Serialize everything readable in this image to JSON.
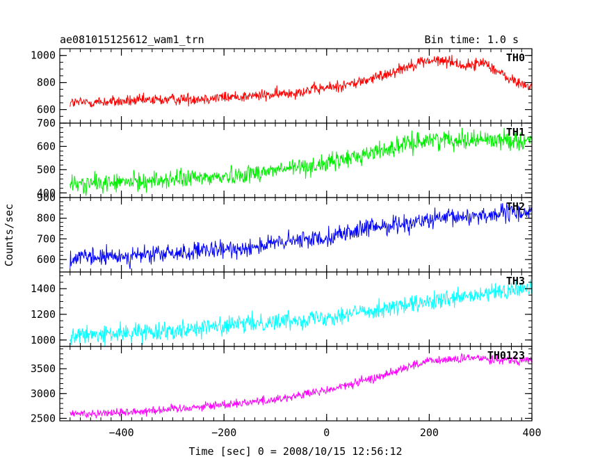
{
  "header": {
    "title": "ae081015125612_wam1_trn",
    "bin_time": "Bin time: 1.0 s"
  },
  "axes": {
    "ylabel": "Counts/sec",
    "xlabel": "Time [sec] 0 = 2008/10/15 12:56:12",
    "xlim": [
      -520,
      400
    ],
    "xticks_major": [
      -400,
      -200,
      0,
      200,
      400
    ],
    "xtick_labels": [
      "−400",
      "−200",
      "0",
      "200",
      "400"
    ],
    "x_minor_step": 20
  },
  "chart_data": {
    "type": "line",
    "x_range": [
      -500,
      400
    ],
    "bin_time_s": 1.0,
    "panels": [
      {
        "name": "TH0",
        "color": "#ff0000",
        "ylim": [
          500,
          1050
        ],
        "yticks": [
          600,
          800,
          1000
        ],
        "ytick_labels": [
          "600",
          "800",
          "1000"
        ],
        "y_minor_step": 50,
        "noise": 22,
        "trend_x": [
          -500,
          -400,
          -300,
          -200,
          -100,
          0,
          50,
          100,
          150,
          180,
          200,
          240,
          270,
          310,
          340,
          370,
          400
        ],
        "trend_y": [
          650,
          660,
          675,
          690,
          710,
          760,
          790,
          840,
          910,
          950,
          960,
          960,
          920,
          950,
          860,
          800,
          770
        ]
      },
      {
        "name": "TH1",
        "color": "#00ee00",
        "ylim": [
          380,
          700
        ],
        "yticks": [
          400,
          500,
          600,
          700
        ],
        "ytick_labels": [
          "400",
          "500",
          "600",
          "700"
        ],
        "y_minor_step": 20,
        "noise": 20,
        "trend_x": [
          -500,
          -400,
          -200,
          0,
          100,
          200,
          300,
          400
        ],
        "trend_y": [
          435,
          445,
          470,
          525,
          580,
          630,
          630,
          625
        ]
      },
      {
        "name": "TH2",
        "color": "#0000ff",
        "ylim": [
          540,
          900
        ],
        "yticks": [
          600,
          700,
          800,
          900
        ],
        "ytick_labels": [
          "600",
          "700",
          "800",
          "900"
        ],
        "y_minor_step": 20,
        "noise": 22,
        "trend_x": [
          -500,
          -400,
          -200,
          0,
          100,
          200,
          300,
          400
        ],
        "trend_y": [
          605,
          615,
          645,
          710,
          760,
          790,
          815,
          830
        ]
      },
      {
        "name": "TH3",
        "color": "#00ffff",
        "ylim": [
          950,
          1530
        ],
        "yticks": [
          1000,
          1200,
          1400
        ],
        "ytick_labels": [
          "1000",
          "1200",
          "1400"
        ],
        "y_minor_step": 50,
        "noise": 35,
        "trend_x": [
          -500,
          -400,
          -200,
          0,
          100,
          200,
          300,
          400
        ],
        "trend_y": [
          1030,
          1050,
          1110,
          1180,
          1240,
          1290,
          1350,
          1410
        ]
      },
      {
        "name": "TH0123",
        "color": "#ff00ff",
        "ylim": [
          2450,
          3950
        ],
        "yticks": [
          2500,
          3000,
          3500
        ],
        "ytick_labels": [
          "2500",
          "3000",
          "3500"
        ],
        "y_minor_step": 100,
        "noise": 45,
        "trend_x": [
          -500,
          -400,
          -300,
          -200,
          -100,
          0,
          100,
          150,
          200,
          250,
          300,
          350,
          400
        ],
        "trend_y": [
          2590,
          2620,
          2690,
          2780,
          2880,
          3060,
          3330,
          3520,
          3650,
          3690,
          3720,
          3680,
          3670
        ]
      }
    ]
  }
}
